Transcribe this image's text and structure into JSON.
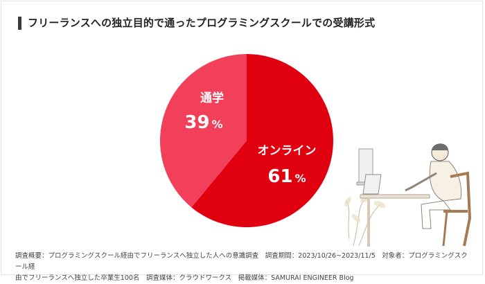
{
  "title": "フリーランスへの独立目的で通ったプログラミングスクールでの受講形式",
  "chart_data": {
    "type": "pie",
    "slices": [
      {
        "name": "オンライン",
        "value": 61,
        "unit": "%",
        "color": "#e00010"
      },
      {
        "name": "通学",
        "value": 39,
        "unit": "%",
        "color": "#f2405a"
      }
    ]
  },
  "footer": {
    "line1": "調査概要：プログラミングスクール経由でフリーランスへ独立した人への意識調査　調査期間：2023/10/26~2023/11/5　対象者：プログラミングスクール経",
    "line2": "由でフリーランスへ独立した卒業生100名　調査媒体：クラウドワークス　掲載媒体：SAMURAI ENGINEER Blog"
  }
}
